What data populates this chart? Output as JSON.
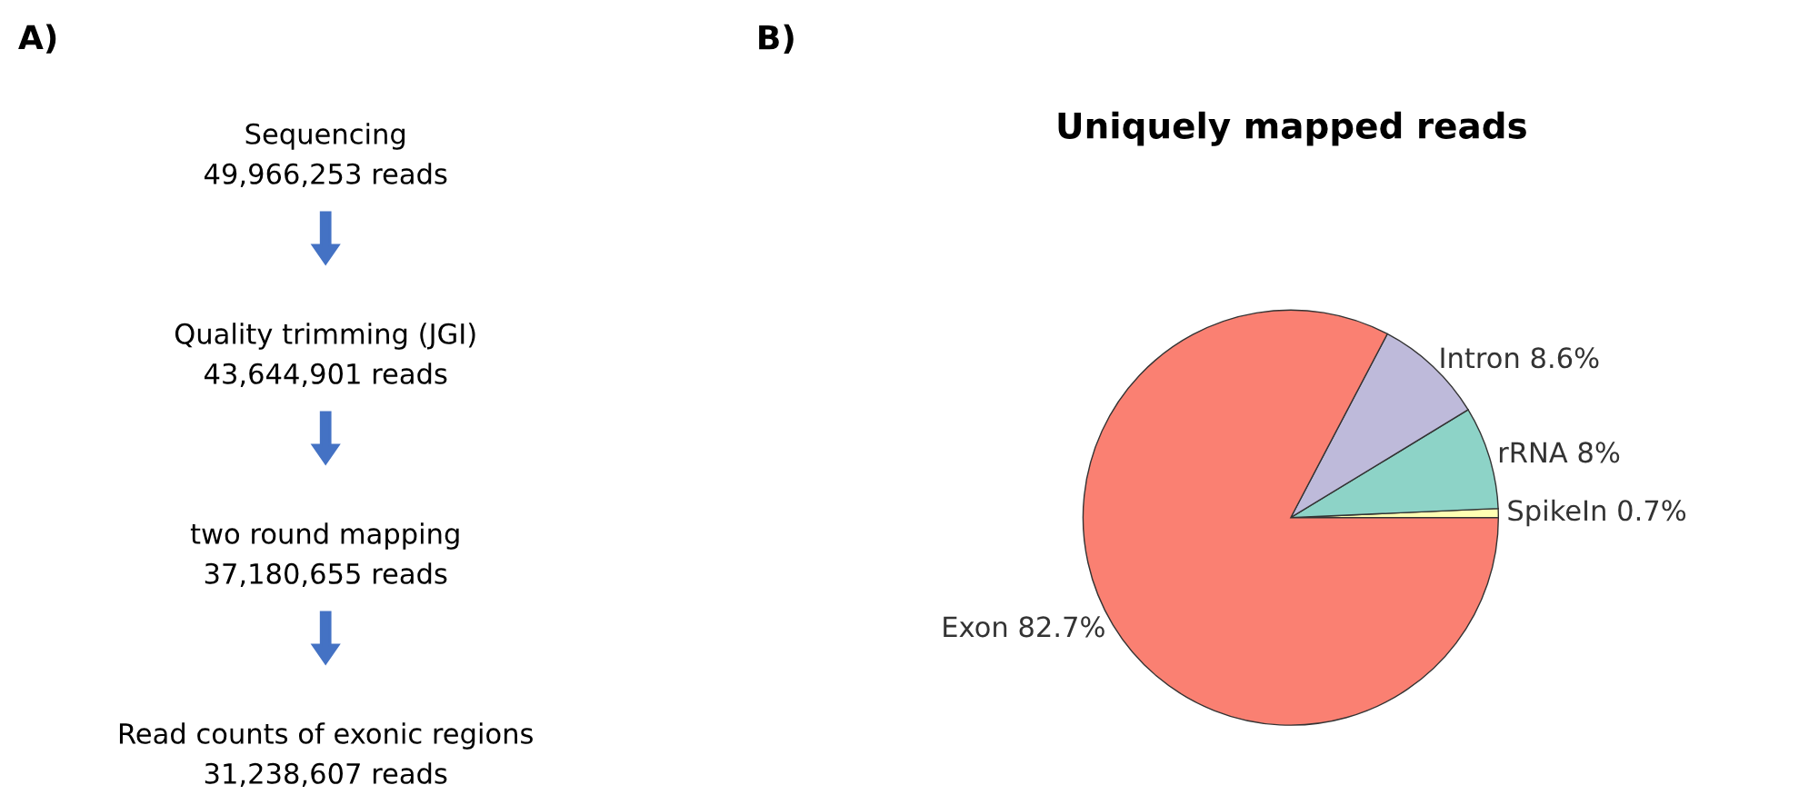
{
  "chart_data": [
    {
      "type": "other",
      "annotations": [
        "A)",
        "Sequencing",
        "49,966,253 reads",
        "Quality trimming (JGI)",
        "43,644,901 reads",
        "two round mapping",
        "37,180,655 reads",
        "Read counts of exonic regions",
        "31,238,607 reads"
      ]
    },
    {
      "type": "pie",
      "title": "Uniquely mapped reads",
      "annotations": [
        "B)"
      ],
      "categories": [
        "SpikeIn",
        "rRNA",
        "Intron",
        "Exon"
      ],
      "values": [
        0.7,
        8,
        8.6,
        82.7
      ],
      "value_labels": [
        "0.7%",
        "8%",
        "8.6%",
        "82.7%"
      ],
      "colors": [
        "#ffffb3",
        "#8dd3c7",
        "#bebada",
        "#fa8072"
      ]
    }
  ]
}
